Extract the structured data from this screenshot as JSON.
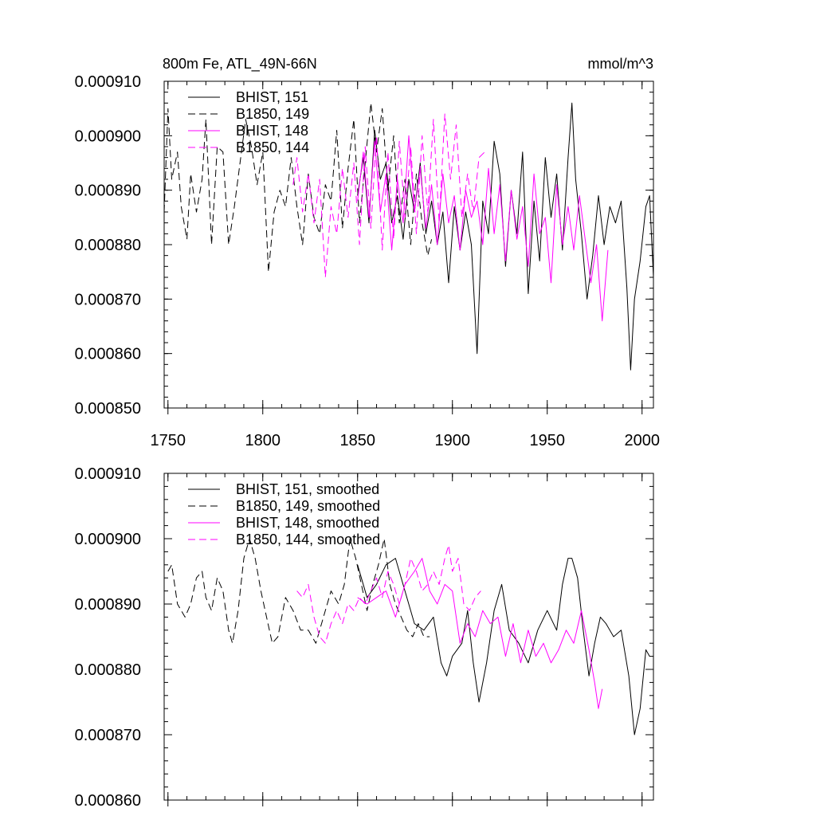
{
  "header": {
    "title": "800m Fe, ATL_49N-66N",
    "units": "mmol/m^3"
  },
  "colors": {
    "black": "#000000",
    "magenta": "#ff00ff"
  },
  "chart_data": [
    {
      "type": "line",
      "title": "800m Fe, ATL_49N-66N",
      "units": "mmol/m^3",
      "xlim": [
        1748,
        2006
      ],
      "ylim": [
        0.00085,
        0.00091
      ],
      "xticks": [
        1750,
        1800,
        1850,
        1900,
        1950,
        2000
      ],
      "xtick_labels": [
        "1750",
        "1800",
        "1850",
        "1900",
        "1950",
        "2000"
      ],
      "yticks": [
        0.00085,
        0.00086,
        0.00087,
        0.00088,
        0.00089,
        0.0009,
        0.00091
      ],
      "ytick_labels": [
        "0.000850",
        "0.000860",
        "0.000870",
        "0.000880",
        "0.000890",
        "0.000900",
        "0.000910"
      ],
      "legend_position": "top-left",
      "series": [
        {
          "name": "BHIST, 151",
          "color": "#000000",
          "dash": "solid",
          "x": [
            1850,
            1853,
            1856,
            1859,
            1862,
            1865,
            1868,
            1871,
            1874,
            1877,
            1880,
            1883,
            1886,
            1889,
            1892,
            1895,
            1898,
            1901,
            1904,
            1907,
            1910,
            1913,
            1916,
            1919,
            1922,
            1925,
            1928,
            1931,
            1934,
            1937,
            1940,
            1943,
            1946,
            1949,
            1952,
            1955,
            1958,
            1961,
            1963,
            1965,
            1968,
            1971,
            1974,
            1977,
            1980,
            1983,
            1986,
            1989,
            1992,
            1994,
            1996,
            1999,
            2002,
            2004,
            2006
          ],
          "y": [
            0.000889,
            0.000896,
            0.000884,
            0.000901,
            0.000892,
            0.000895,
            0.000884,
            0.000889,
            0.000881,
            0.000892,
            0.000886,
            0.000895,
            0.000882,
            0.000888,
            0.00088,
            0.000886,
            0.000873,
            0.000887,
            0.000879,
            0.000886,
            0.00088,
            0.00086,
            0.000888,
            0.000882,
            0.000899,
            0.000893,
            0.000876,
            0.00089,
            0.000882,
            0.000897,
            0.000871,
            0.000888,
            0.000877,
            0.000896,
            0.000885,
            0.000893,
            0.000879,
            0.000896,
            0.000906,
            0.000892,
            0.000882,
            0.00087,
            0.000878,
            0.000889,
            0.00088,
            0.000887,
            0.000884,
            0.000888,
            0.000872,
            0.000857,
            0.00087,
            0.000877,
            0.000887,
            0.000889,
            0.000874
          ]
        },
        {
          "name": "B1850, 149",
          "color": "#000000",
          "dash": "long",
          "x": [
            1748,
            1750,
            1752,
            1755,
            1757,
            1760,
            1762,
            1765,
            1768,
            1770,
            1773,
            1776,
            1779,
            1782,
            1785,
            1788,
            1791,
            1794,
            1797,
            1800,
            1803,
            1806,
            1809,
            1812,
            1815,
            1818,
            1821,
            1824,
            1827,
            1830,
            1833,
            1836,
            1839,
            1842,
            1845,
            1848,
            1851,
            1854,
            1857,
            1860,
            1863,
            1866,
            1869,
            1872,
            1875,
            1878,
            1881,
            1884,
            1887,
            1889
          ],
          "y": [
            0.000886,
            0.000905,
            0.000892,
            0.000897,
            0.000887,
            0.000881,
            0.000893,
            0.000886,
            0.000892,
            0.000903,
            0.00088,
            0.000898,
            0.000897,
            0.00088,
            0.000887,
            0.000895,
            0.000903,
            0.000898,
            0.000891,
            0.000897,
            0.000875,
            0.000886,
            0.00089,
            0.000887,
            0.000896,
            0.000887,
            0.00088,
            0.000893,
            0.000885,
            0.000882,
            0.000891,
            0.000888,
            0.000901,
            0.000883,
            0.000894,
            0.000903,
            0.000884,
            0.000895,
            0.000906,
            0.000897,
            0.000905,
            0.00089,
            0.0009,
            0.000884,
            0.000892,
            0.00088,
            0.000893,
            0.000884,
            0.000878,
            0.000881
          ]
        },
        {
          "name": "BHIST, 148",
          "color": "#ff00ff",
          "dash": "solid",
          "x": [
            1850,
            1853,
            1856,
            1859,
            1862,
            1865,
            1868,
            1871,
            1874,
            1877,
            1880,
            1883,
            1886,
            1889,
            1892,
            1895,
            1898,
            1901,
            1904,
            1907,
            1910,
            1913,
            1916,
            1919,
            1922,
            1925,
            1928,
            1931,
            1934,
            1937,
            1940,
            1943,
            1946,
            1949,
            1952,
            1955,
            1958,
            1961,
            1964,
            1967,
            1970,
            1973,
            1976,
            1979,
            1982
          ],
          "y": [
            0.000888,
            0.000897,
            0.000885,
            0.000899,
            0.000886,
            0.000893,
            0.000879,
            0.000892,
            0.000884,
            0.0009,
            0.000886,
            0.000894,
            0.000883,
            0.000891,
            0.00088,
            0.000893,
            0.000884,
            0.000889,
            0.000879,
            0.00089,
            0.000885,
            0.000888,
            0.00088,
            0.000894,
            0.000882,
            0.000891,
            0.000877,
            0.00089,
            0.000881,
            0.000887,
            0.000876,
            0.000893,
            0.000882,
            0.000885,
            0.000873,
            0.000891,
            0.00088,
            0.000887,
            0.000879,
            0.000889,
            0.000881,
            0.000873,
            0.00088,
            0.000866,
            0.000879
          ]
        },
        {
          "name": "B1850, 144",
          "color": "#ff00ff",
          "dash": "long",
          "x": [
            1816,
            1818,
            1821,
            1824,
            1827,
            1830,
            1833,
            1836,
            1839,
            1842,
            1845,
            1848,
            1851,
            1854,
            1857,
            1860,
            1863,
            1866,
            1869,
            1872,
            1875,
            1878,
            1881,
            1884,
            1887,
            1890,
            1893,
            1896,
            1899,
            1902,
            1905,
            1908,
            1911,
            1914,
            1917
          ],
          "y": [
            0.000891,
            0.000896,
            0.000886,
            0.000893,
            0.000884,
            0.000892,
            0.000874,
            0.000887,
            0.000882,
            0.000894,
            0.000885,
            0.000895,
            0.00088,
            0.000898,
            0.000883,
            0.0009,
            0.000879,
            0.000897,
            0.000881,
            0.000899,
            0.000885,
            0.000898,
            0.000882,
            0.0009,
            0.000886,
            0.000903,
            0.000884,
            0.000904,
            0.000892,
            0.000902,
            0.000885,
            0.000893,
            0.000886,
            0.000896,
            0.000897
          ]
        }
      ]
    },
    {
      "type": "line",
      "xlim": [
        1748,
        2006
      ],
      "ylim": [
        0.00086,
        0.00091
      ],
      "xticks": [
        1750,
        1800,
        1850,
        1900,
        1950,
        2000
      ],
      "yticks": [
        0.00086,
        0.00087,
        0.00088,
        0.00089,
        0.0009,
        0.00091
      ],
      "ytick_labels": [
        "0.000860",
        "0.000870",
        "0.000880",
        "0.000890",
        "0.000900",
        "0.000910"
      ],
      "legend_position": "top-left",
      "series": [
        {
          "name": "BHIST, 151, smoothed",
          "color": "#000000",
          "dash": "solid",
          "x": [
            1850,
            1855,
            1860,
            1865,
            1870,
            1875,
            1880,
            1885,
            1890,
            1894,
            1897,
            1900,
            1905,
            1908,
            1911,
            1914,
            1918,
            1922,
            1926,
            1930,
            1935,
            1940,
            1945,
            1950,
            1955,
            1958,
            1961,
            1963,
            1966,
            1969,
            1972,
            1975,
            1978,
            1981,
            1985,
            1989,
            1993,
            1996,
            1999,
            2002,
            2004
          ],
          "y": [
            0.000896,
            0.000891,
            0.000893,
            0.000896,
            0.000897,
            0.000892,
            0.000887,
            0.000886,
            0.000888,
            0.000881,
            0.000879,
            0.000882,
            0.000884,
            0.000889,
            0.000881,
            0.000875,
            0.000881,
            0.000889,
            0.000893,
            0.000886,
            0.000884,
            0.000881,
            0.000886,
            0.000889,
            0.000886,
            0.000893,
            0.000897,
            0.000897,
            0.000894,
            0.000886,
            0.000879,
            0.000884,
            0.000888,
            0.000887,
            0.000885,
            0.000886,
            0.000879,
            0.00087,
            0.000874,
            0.000883,
            0.000882
          ]
        },
        {
          "name": "B1850, 149, smoothed",
          "color": "#000000",
          "dash": "long",
          "x": [
            1750,
            1752,
            1755,
            1759,
            1762,
            1765,
            1768,
            1770,
            1773,
            1776,
            1779,
            1782,
            1784,
            1787,
            1790,
            1793,
            1796,
            1799,
            1802,
            1805,
            1808,
            1812,
            1816,
            1820,
            1824,
            1828,
            1832,
            1836,
            1840,
            1843,
            1846,
            1849,
            1852,
            1855,
            1858,
            1861,
            1864,
            1867,
            1870,
            1873,
            1876,
            1879,
            1882,
            1885,
            1888
          ],
          "y": [
            0.000895,
            0.000896,
            0.00089,
            0.000888,
            0.00089,
            0.000894,
            0.000895,
            0.000891,
            0.000889,
            0.000894,
            0.000892,
            0.000886,
            0.000884,
            0.000889,
            0.000897,
            0.0009,
            0.000897,
            0.000892,
            0.000888,
            0.000884,
            0.000885,
            0.000891,
            0.000889,
            0.000886,
            0.000886,
            0.000884,
            0.000888,
            0.000892,
            0.00089,
            0.000893,
            0.0009,
            0.000897,
            0.000893,
            0.000889,
            0.000893,
            0.000896,
            0.0009,
            0.000893,
            0.00089,
            0.000888,
            0.000886,
            0.000885,
            0.000887,
            0.000885,
            0.000885
          ]
        },
        {
          "name": "BHIST, 148, smoothed",
          "color": "#ff00ff",
          "dash": "solid",
          "x": [
            1850,
            1855,
            1860,
            1865,
            1870,
            1875,
            1880,
            1884,
            1888,
            1892,
            1896,
            1900,
            1904,
            1908,
            1912,
            1916,
            1920,
            1924,
            1928,
            1932,
            1936,
            1940,
            1944,
            1948,
            1952,
            1956,
            1960,
            1964,
            1968,
            1972,
            1975,
            1977,
            1979
          ],
          "y": [
            0.000891,
            0.00089,
            0.000891,
            0.000892,
            0.000888,
            0.000893,
            0.000895,
            0.000897,
            0.000892,
            0.00089,
            0.000893,
            0.000892,
            0.000884,
            0.000887,
            0.000885,
            0.000889,
            0.000887,
            0.000888,
            0.000882,
            0.000887,
            0.000881,
            0.000886,
            0.000882,
            0.000884,
            0.000881,
            0.000883,
            0.000886,
            0.000884,
            0.000889,
            0.000883,
            0.000878,
            0.000874,
            0.000877
          ]
        },
        {
          "name": "B1850, 144, smoothed",
          "color": "#ff00ff",
          "dash": "long",
          "x": [
            1818,
            1821,
            1824,
            1827,
            1830,
            1833,
            1836,
            1839,
            1842,
            1845,
            1848,
            1851,
            1854,
            1857,
            1860,
            1863,
            1866,
            1869,
            1872,
            1875,
            1878,
            1881,
            1884,
            1887,
            1890,
            1893,
            1896,
            1898,
            1900,
            1903,
            1906,
            1909,
            1912,
            1915
          ],
          "y": [
            0.000892,
            0.000891,
            0.000893,
            0.000888,
            0.000885,
            0.000884,
            0.000887,
            0.000889,
            0.000887,
            0.00089,
            0.000889,
            0.000891,
            0.00089,
            0.000892,
            0.000894,
            0.000891,
            0.000895,
            0.000893,
            0.00089,
            0.000893,
            0.000897,
            0.000895,
            0.000892,
            0.000893,
            0.000895,
            0.000893,
            0.000897,
            0.000899,
            0.000895,
            0.000897,
            0.00089,
            0.000889,
            0.000891,
            0.000892
          ]
        }
      ]
    }
  ]
}
